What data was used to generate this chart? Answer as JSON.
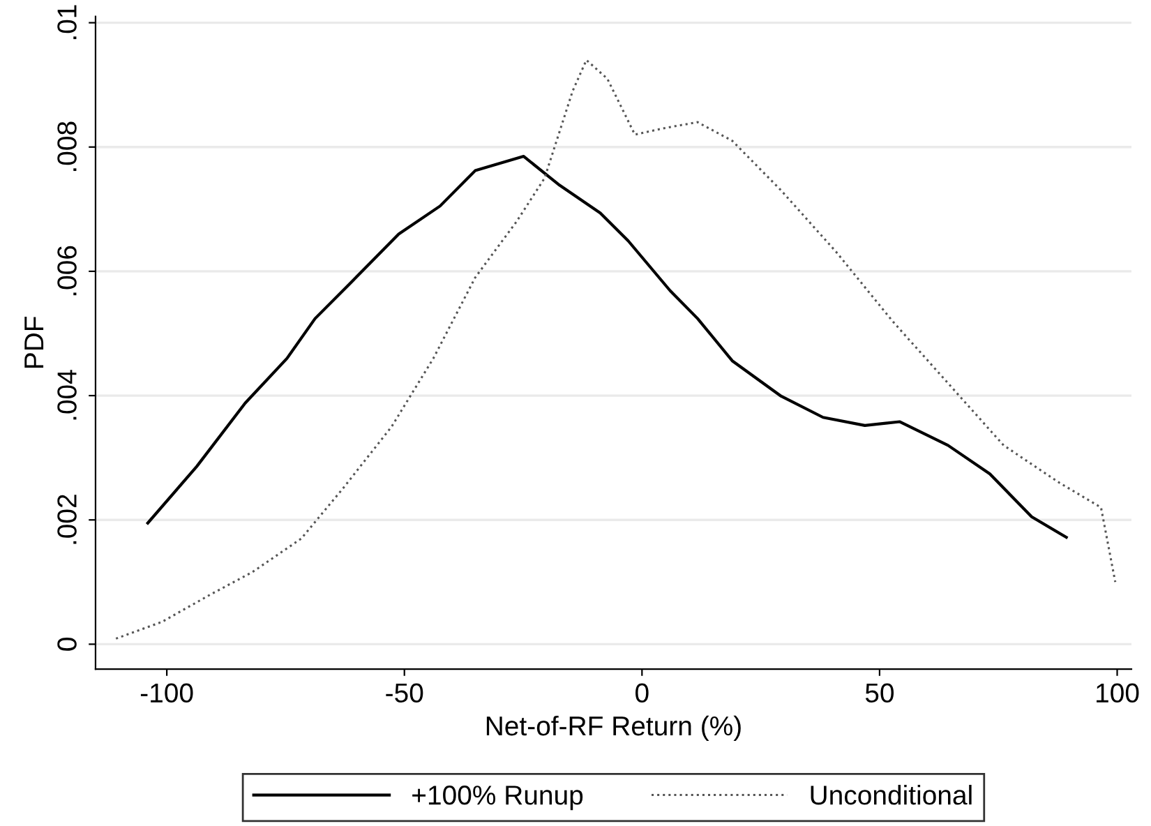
{
  "chart_data": {
    "type": "line",
    "xlabel": "Net-of-RF Return (%)",
    "ylabel": "PDF",
    "xlim": [
      -115,
      103
    ],
    "xticks": [
      -100,
      -50,
      0,
      50,
      100
    ],
    "ylim": [
      -0.0004,
      0.0101
    ],
    "yticks": [
      {
        "value": 0,
        "label": "0"
      },
      {
        "value": 0.002,
        "label": ".002"
      },
      {
        "value": 0.004,
        "label": ".004"
      },
      {
        "value": 0.006,
        "label": ".006"
      },
      {
        "value": 0.008,
        "label": ".008"
      },
      {
        "value": 0.01,
        "label": ".01"
      }
    ],
    "grid": "y",
    "legend": "bottom",
    "series": [
      {
        "name": "+100% Runup",
        "color": "#000000",
        "line_style": "solid",
        "x": [
          -104,
          -93.7,
          -83.5,
          -74.7,
          -68.8,
          -61.5,
          -51.2,
          -42.5,
          -35.1,
          -24.9,
          -17.6,
          -8.8,
          -2.9,
          5.9,
          11.7,
          19,
          29.3,
          38.1,
          46.9,
          54.2,
          64.4,
          73.2,
          82,
          89.3
        ],
        "values": [
          0.00195,
          0.00286,
          0.00388,
          0.0046,
          0.00524,
          0.0058,
          0.0066,
          0.00705,
          0.00762,
          0.00785,
          0.0074,
          0.00694,
          0.00649,
          0.00569,
          0.00524,
          0.00456,
          0.00399,
          0.00365,
          0.00352,
          0.00358,
          0.0032,
          0.00274,
          0.00205,
          0.00172
        ]
      },
      {
        "name": "Unconditional",
        "color": "#555555",
        "line_style": "dotted",
        "x": [
          -110.7,
          -101,
          -90.8,
          -82,
          -71.7,
          -63,
          -52.7,
          -43.9,
          -35.1,
          -26.4,
          -20.5,
          -14.6,
          -11.7,
          -7.3,
          -1.5,
          4.4,
          11.7,
          19,
          29.3,
          41,
          52.7,
          64.4,
          76.1,
          87.8,
          96.6,
          99.6
        ],
        "values": [
          9e-05,
          0.00036,
          0.0008,
          0.00116,
          0.0017,
          0.0025,
          0.0035,
          0.0046,
          0.0059,
          0.0068,
          0.0075,
          0.0089,
          0.0094,
          0.0091,
          0.0082,
          0.0083,
          0.0084,
          0.0081,
          0.0073,
          0.0063,
          0.0052,
          0.0042,
          0.0032,
          0.0026,
          0.0022,
          0.001
        ]
      }
    ]
  }
}
